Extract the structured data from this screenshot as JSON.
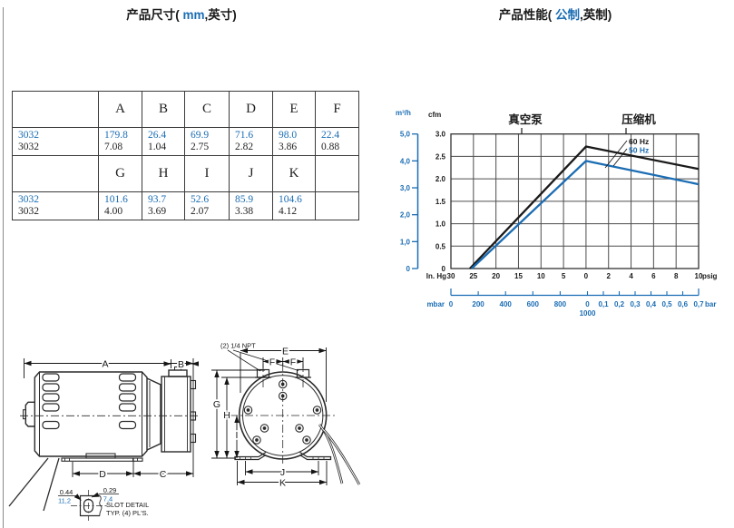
{
  "page": {
    "colors": {
      "accent_blue": "#1a6cb3",
      "line_black": "#1a1a1a"
    },
    "dim_title": {
      "prefix": "产品尺寸(",
      "blue": " mm",
      "suffix": ",英寸)"
    },
    "perf_title": {
      "prefix": "产品性能(",
      "blue": " 公制",
      "suffix": ",英制)"
    }
  },
  "table": {
    "headers_1": [
      "",
      "A",
      "B",
      "C",
      "D",
      "E",
      "F"
    ],
    "row_metric_1": [
      "3032",
      "179.8",
      "26.4",
      "69.9",
      "71.6",
      "98.0",
      "22.4"
    ],
    "row_imperial_1": [
      "3032",
      "7.08",
      "1.04",
      "2.75",
      "2.82",
      "3.86",
      "0.88"
    ],
    "headers_2": [
      "",
      "G",
      "H",
      "I",
      "J",
      "K",
      ""
    ],
    "row_metric_2": [
      "3032",
      "101.6",
      "93.7",
      "52.6",
      "85.9",
      "104.6",
      ""
    ],
    "row_imperial_2": [
      "3032",
      "4.00",
      "3.69",
      "2.07",
      "3.38",
      "4.12",
      ""
    ]
  },
  "chart_data": {
    "type": "line",
    "region_title_left": "真空泵",
    "region_title_right": "压缩机",
    "y_axis_outer": {
      "unit": "m³/h",
      "ticks": [
        "5,0",
        "4,0",
        "3,0",
        "2,0",
        "1,0",
        "0"
      ]
    },
    "y_axis_inner": {
      "unit": "cfm",
      "ticks": [
        "3.0",
        "2.5",
        "2.0",
        "1.5",
        "1.0",
        "0.5",
        "0"
      ],
      "max": 3.0
    },
    "x_axis_top": {
      "unit_left": "In. Hg",
      "unit_right": "psig",
      "ticks": [
        "30",
        "25",
        "20",
        "15",
        "10",
        "5",
        "0",
        "2",
        "4",
        "6",
        "8",
        "10"
      ]
    },
    "x_axis_bottom": {
      "unit_left": "mbar",
      "unit_right": "bar",
      "vacuum_ticks": [
        "0",
        "200",
        "400",
        "600",
        "800"
      ],
      "atmosphere_tick": {
        "top": "0",
        "bottom": "1000"
      },
      "pressure_ticks": [
        "0,1",
        "0,2",
        "0,3",
        "0,4",
        "0,5",
        "0,6",
        "0,7"
      ]
    },
    "series": [
      {
        "name": "60 Hz",
        "color": "#1a1a1a",
        "points": [
          {
            "inhg": 25.8,
            "cfm": 0
          },
          {
            "inhg": 0,
            "cfm": 2.72
          },
          {
            "psig": 10,
            "cfm": 2.22
          }
        ]
      },
      {
        "name": "50 Hz",
        "color": "#1a6cb3",
        "points": [
          {
            "inhg": 25.4,
            "cfm": 0
          },
          {
            "inhg": 0,
            "cfm": 2.4
          },
          {
            "psig": 10,
            "cfm": 1.88
          }
        ]
      }
    ],
    "legend_position": "upper right inside plot",
    "grid": true
  },
  "drawings": {
    "dim_a": "A",
    "dim_b": "B",
    "dim_c": "C",
    "dim_d": "D",
    "dim_e": "E",
    "dim_f": "F",
    "dim_g": "G",
    "dim_h": "H",
    "dim_i": "I",
    "dim_j": "J",
    "dim_k": "K",
    "npt_note": "(2) 1/4 NPT",
    "slot_width_in": "0.44",
    "slot_width_mm": "11,2",
    "slot_height_in": "0.29",
    "slot_height_mm": "7,4",
    "slot_note_1": "SLOT DETAIL",
    "slot_note_2": "TYP. (4) PL'S."
  }
}
